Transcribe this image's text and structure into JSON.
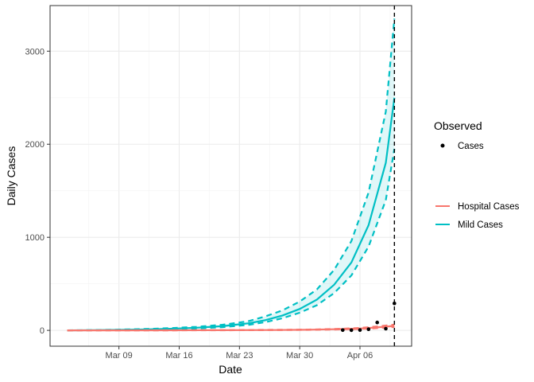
{
  "chart_data": {
    "type": "line",
    "xlabel": "Date",
    "ylabel": "Daily Cases",
    "x_ticks": [
      {
        "date": "2020-03-09",
        "label": "Mar 09"
      },
      {
        "date": "2020-03-16",
        "label": "Mar 16"
      },
      {
        "date": "2020-03-23",
        "label": "Mar 23"
      },
      {
        "date": "2020-03-30",
        "label": "Mar 30"
      },
      {
        "date": "2020-04-06",
        "label": "Apr 06"
      }
    ],
    "xlim": [
      "2020-03-01",
      "2020-04-12"
    ],
    "y_ticks": [
      0,
      1000,
      2000,
      3000
    ],
    "ylim": [
      -170,
      3490
    ],
    "grid": true,
    "vline_date": "2020-04-10",
    "legend": {
      "observed_title": "Observed",
      "observed_label": "Cases",
      "lines": [
        {
          "name": "Hospital Cases",
          "color": "#F8766D"
        },
        {
          "name": "Mild Cases",
          "color": "#00BFC4"
        }
      ]
    },
    "series": [
      {
        "name": "Mild Cases",
        "color": "#00BFC4",
        "x": [
          "2020-03-03",
          "2020-03-06",
          "2020-03-09",
          "2020-03-12",
          "2020-03-15",
          "2020-03-18",
          "2020-03-21",
          "2020-03-24",
          "2020-03-26",
          "2020-03-28",
          "2020-03-30",
          "2020-04-01",
          "2020-04-03",
          "2020-04-05",
          "2020-04-07",
          "2020-04-09",
          "2020-04-10"
        ],
        "median": [
          0,
          2,
          5,
          10,
          17,
          28,
          45,
          75,
          110,
          160,
          230,
          330,
          490,
          730,
          1130,
          1800,
          2500
        ],
        "lower": [
          0,
          1,
          3,
          7,
          12,
          20,
          34,
          58,
          88,
          130,
          190,
          270,
          400,
          590,
          900,
          1400,
          1950
        ],
        "upper": [
          0,
          3,
          8,
          15,
          24,
          38,
          60,
          98,
          150,
          215,
          310,
          440,
          650,
          960,
          1480,
          2350,
          3350
        ]
      },
      {
        "name": "Hospital Cases",
        "color": "#F8766D",
        "x": [
          "2020-03-03",
          "2020-03-09",
          "2020-03-15",
          "2020-03-21",
          "2020-03-27",
          "2020-03-31",
          "2020-04-03",
          "2020-04-06",
          "2020-04-08",
          "2020-04-10"
        ],
        "median": [
          0,
          0,
          1,
          2,
          4,
          7,
          12,
          20,
          32,
          48
        ],
        "lower": [
          0,
          0,
          0,
          1,
          3,
          5,
          9,
          15,
          24,
          36
        ],
        "upper": [
          0,
          1,
          1,
          3,
          6,
          9,
          15,
          26,
          42,
          62
        ]
      }
    ],
    "observed_points": {
      "name": "Cases",
      "x": [
        "2020-04-04",
        "2020-04-05",
        "2020-04-06",
        "2020-04-07",
        "2020-04-08",
        "2020-04-09",
        "2020-04-10"
      ],
      "y": [
        3,
        2,
        4,
        12,
        85,
        18,
        290
      ]
    }
  }
}
